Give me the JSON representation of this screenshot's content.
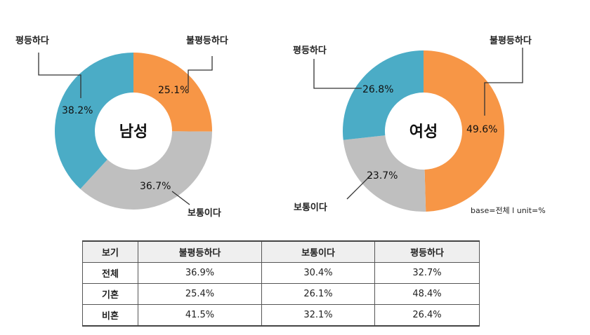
{
  "chart_data": [
    {
      "type": "pie",
      "title": "남성",
      "categories": [
        "불평등하다",
        "보통이다",
        "평등하다"
      ],
      "values": [
        25.1,
        36.7,
        38.2
      ],
      "labels": [
        "25.1%",
        "36.7%",
        "38.2%"
      ],
      "colors": [
        "#F79646",
        "#BFBFBF",
        "#4BACC6"
      ]
    },
    {
      "type": "pie",
      "title": "여성",
      "categories": [
        "불평등하다",
        "보통이다",
        "평등하다"
      ],
      "values": [
        49.6,
        23.7,
        26.8
      ],
      "labels": [
        "49.6%",
        "23.7%",
        "26.8%"
      ],
      "colors": [
        "#F79646",
        "#BFBFBF",
        "#4BACC6"
      ]
    }
  ],
  "note": "base=전체  l unit=%",
  "table": {
    "headers": [
      "보기",
      "불평등하다",
      "보통이다",
      "평등하다"
    ],
    "rows": [
      [
        "전체",
        "36.9%",
        "30.4%",
        "32.7%"
      ],
      [
        "기혼",
        "25.4%",
        "26.1%",
        "48.4%"
      ],
      [
        "비혼",
        "41.5%",
        "32.1%",
        "26.4%"
      ]
    ]
  }
}
